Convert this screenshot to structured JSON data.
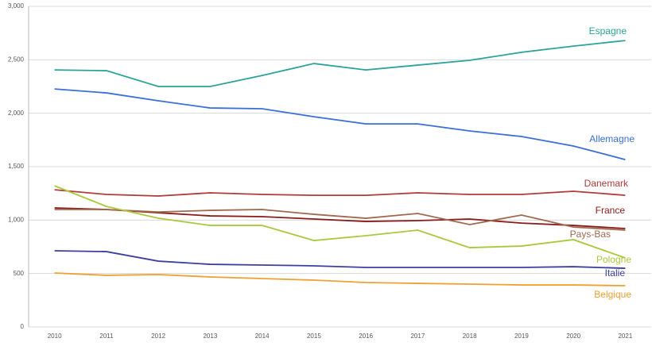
{
  "chart_data": {
    "type": "line",
    "categories": [
      "2010",
      "2011",
      "2012",
      "2013",
      "2014",
      "2015",
      "2016",
      "2017",
      "2018",
      "2019",
      "2020",
      "2021"
    ],
    "ylim": [
      0,
      3000
    ],
    "yticks": [
      0,
      500,
      {
        "value": 1000,
        "label": "1,000"
      },
      {
        "value": 1500,
        "label": "1,500"
      },
      {
        "value": 2000,
        "label": "2,000"
      },
      {
        "value": 2500,
        "label": "2,500"
      },
      {
        "value": 3000,
        "label": "3,000"
      }
    ],
    "grid": true,
    "series": [
      {
        "name": "Espagne",
        "color": "#2ba398",
        "values": [
          2405,
          2398,
          2250,
          2250,
          2353,
          2465,
          2405,
          2450,
          2495,
          2570,
          2628,
          2680
        ]
      },
      {
        "name": "Allemagne",
        "color": "#3a6fd8",
        "values": [
          2227,
          2190,
          2116,
          2049,
          2042,
          1967,
          1900,
          1900,
          1834,
          1782,
          1693,
          1566
        ]
      },
      {
        "name": "Danemark",
        "color": "#b23a3a",
        "values": [
          1284,
          1240,
          1225,
          1255,
          1240,
          1232,
          1232,
          1255,
          1240,
          1240,
          1270,
          1232
        ]
      },
      {
        "name": "France",
        "color": "#8b1a1a",
        "values": [
          1114,
          1099,
          1069,
          1039,
          1032,
          1010,
          987,
          995,
          1010,
          972,
          950,
          921
        ]
      },
      {
        "name": "Pays-Bas",
        "color": "#a0694f",
        "values": [
          1099,
          1099,
          1076,
          1091,
          1099,
          1054,
          1017,
          1062,
          958,
          1047,
          935,
          906
        ]
      },
      {
        "name": "Pologne",
        "color": "#a8c93a",
        "values": [
          1321,
          1128,
          1017,
          950,
          950,
          809,
          854,
          906,
          742,
          757,
          817,
          646
        ]
      },
      {
        "name": "Italie",
        "color": "#3b3fa0",
        "values": [
          713,
          705,
          616,
          586,
          579,
          572,
          557,
          557,
          557,
          557,
          564,
          549
        ]
      },
      {
        "name": "Belgique",
        "color": "#f0a030",
        "values": [
          505,
          483,
          490,
          468,
          453,
          438,
          416,
          408,
          401,
          393,
          393,
          386
        ]
      }
    ]
  }
}
